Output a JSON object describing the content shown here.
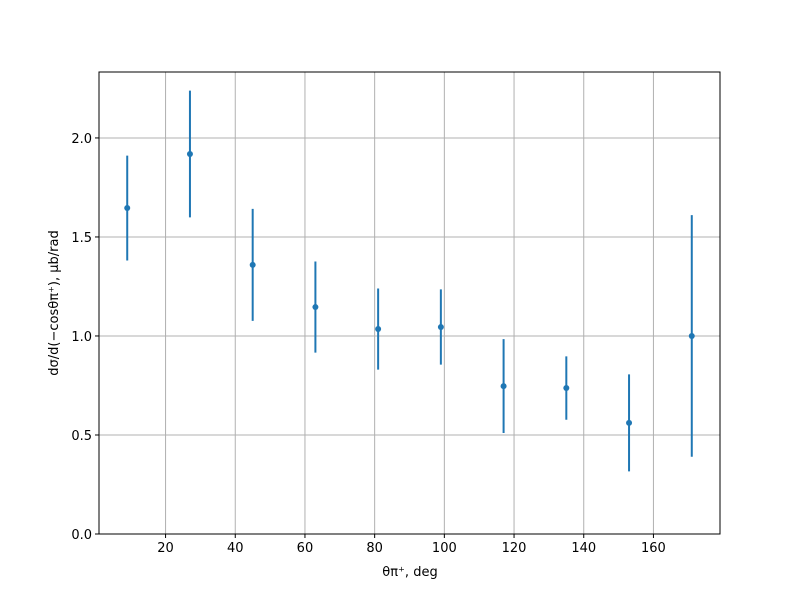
{
  "chart_data": {
    "type": "errorbar",
    "xlabel": "θπ⁺, deg",
    "ylabel": "dσ/d(−cosθπ⁺), μb/rad",
    "x": [
      9,
      27,
      45,
      63,
      81,
      99,
      117,
      135,
      153,
      171
    ],
    "values": [
      1.646,
      1.919,
      1.359,
      1.146,
      1.035,
      1.045,
      0.747,
      0.737,
      0.561,
      1.0
    ],
    "errors": [
      0.265,
      0.32,
      0.283,
      0.23,
      0.205,
      0.19,
      0.237,
      0.16,
      0.245,
      0.61
    ],
    "color": "#1f77b4",
    "xlim": [
      0.9,
      179.1
    ],
    "ylim": [
      0,
      2.333
    ],
    "xticks": [
      20,
      40,
      60,
      80,
      100,
      120,
      140,
      160
    ],
    "yticks": [
      {
        "value": 0,
        "label": "0.0"
      },
      {
        "value": 0.5,
        "label": "0.5"
      },
      {
        "value": 1,
        "label": "1.0"
      },
      {
        "value": 1.5,
        "label": "1.5"
      },
      {
        "value": 2,
        "label": "2.0"
      }
    ],
    "grid": true
  }
}
